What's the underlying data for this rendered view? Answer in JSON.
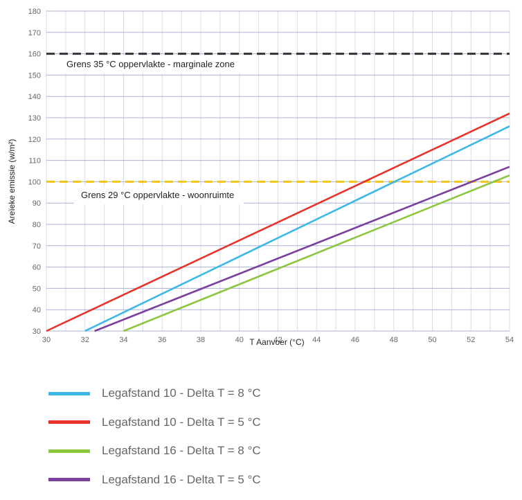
{
  "chart_data": {
    "type": "line",
    "title": "",
    "xlabel": "T Aanvoer (°C)",
    "ylabel": "Areïeke emissie (w/m²)",
    "xlim": [
      30,
      54
    ],
    "ylim": [
      30,
      180
    ],
    "xticks": [
      30,
      32,
      34,
      36,
      38,
      40,
      42,
      44,
      46,
      48,
      50,
      52,
      54
    ],
    "yticks": [
      30,
      40,
      50,
      60,
      70,
      80,
      90,
      100,
      110,
      120,
      130,
      140,
      150,
      160,
      170,
      180
    ],
    "grid": true,
    "legend_position": "bottom",
    "series": [
      {
        "name": "Legafstand 10 - Delta T = 8 °C",
        "color": "#3db8e6",
        "x": [
          32,
          54
        ],
        "y": [
          30,
          126
        ]
      },
      {
        "name": "Legafstand 10 - Delta T = 5 °C",
        "color": "#e8332a",
        "x": [
          30,
          54
        ],
        "y": [
          30,
          132
        ]
      },
      {
        "name": "Legafstand 16 - Delta T = 8 °C",
        "color": "#8cc63f",
        "x": [
          34,
          54
        ],
        "y": [
          30,
          103
        ]
      },
      {
        "name": "Legafstand 16 - Delta T = 5 °C",
        "color": "#7b3f9e",
        "x": [
          32.5,
          54
        ],
        "y": [
          30,
          107
        ]
      }
    ],
    "reference_lines": [
      {
        "y": 160,
        "label": "Grens 35 °C oppervlakte - marginale zone",
        "color": "#333333",
        "style": "dashed"
      },
      {
        "y": 100,
        "label": "Grens 29 °C oppervlakte - woonruimte",
        "color": "#f5c518",
        "style": "dashed"
      }
    ]
  }
}
